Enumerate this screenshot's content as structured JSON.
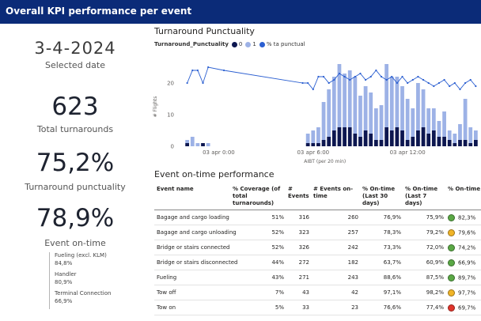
{
  "header": {
    "title": "Overall KPI performance per event"
  },
  "kpis": {
    "date": {
      "value": "3-4-2024",
      "label": "Selected date"
    },
    "turnarounds": {
      "value": "623",
      "label": "Total turnarounds"
    },
    "punctuality": {
      "value": "75,2%",
      "label": "Turnaround punctuality"
    },
    "event_ontime": {
      "value": "78,9%",
      "label": "Event on-time"
    }
  },
  "sub_kpis": [
    {
      "label": "Fueling (excl. KLM)",
      "value": "84,8%"
    },
    {
      "label": "Handler",
      "value": "80,9%"
    },
    {
      "label": "Terminal Connection",
      "value": "66,9%"
    }
  ],
  "turnaround_chart": {
    "title": "Turnaround Punctuality",
    "legend_title": "Turnaround_Punctuality",
    "legend": [
      {
        "label": "0",
        "color": "#0d1750"
      },
      {
        "label": "1",
        "color": "#9db2e6"
      },
      {
        "label": "% ta punctual",
        "color": "#2b5fd1"
      }
    ]
  },
  "chart_data": {
    "type": "bar",
    "title": "Turnaround Punctuality",
    "xlabel": "AIBT (per 20 min)",
    "ylabel": "# Flights",
    "ylim": [
      0,
      25
    ],
    "yticks": [
      0,
      10,
      20
    ],
    "xtick_labels": [
      "03 apr 0:00",
      "03 apr 6:00",
      "03 apr 12:00"
    ],
    "x_range": [
      -1,
      56
    ],
    "x_ticks_at": [
      6,
      24,
      42
    ],
    "series": [
      {
        "name": "0",
        "color": "#0d1750",
        "stacking": "bottom",
        "values": [
          1,
          0,
          0,
          1,
          0,
          0,
          0,
          0,
          0,
          0,
          0,
          0,
          0,
          0,
          0,
          0,
          0,
          0,
          0,
          0,
          0,
          0,
          0,
          1,
          1,
          1,
          2,
          3,
          5,
          6,
          6,
          6,
          4,
          3,
          5,
          4,
          2,
          2,
          6,
          5,
          6,
          5,
          2,
          3,
          5,
          6,
          4,
          5,
          3,
          3,
          2,
          1,
          2,
          2,
          1,
          2
        ]
      },
      {
        "name": "1",
        "color": "#9db2e6",
        "stacking": "top",
        "values": [
          1,
          3,
          1,
          0,
          1,
          0,
          0,
          0,
          0,
          0,
          0,
          0,
          0,
          0,
          0,
          0,
          0,
          0,
          0,
          0,
          0,
          0,
          0,
          3,
          4,
          5,
          12,
          15,
          17,
          20,
          17,
          18,
          18,
          13,
          14,
          13,
          10,
          11,
          20,
          17,
          16,
          14,
          13,
          9,
          15,
          12,
          8,
          7,
          5,
          8,
          3,
          3,
          5,
          13,
          5,
          3
        ]
      },
      {
        "name": "% ta punctual",
        "color": "#2b5fd1",
        "type": "line",
        "values": [
          20,
          24,
          24,
          20,
          25,
          null,
          null,
          24,
          null,
          null,
          null,
          null,
          null,
          null,
          null,
          null,
          null,
          null,
          null,
          null,
          null,
          null,
          20,
          20,
          18,
          22,
          22,
          20,
          21,
          23,
          22,
          21,
          22,
          23,
          21,
          22,
          24,
          22,
          21,
          22,
          20,
          22,
          20,
          21,
          22,
          21,
          20,
          19,
          20,
          21,
          19,
          20,
          18,
          20,
          21,
          19
        ]
      }
    ]
  },
  "events_table": {
    "title": "Event on-time performance",
    "columns": [
      "Event name",
      "% Coverage (of total turnarounds)",
      "# Events",
      "# Events on-time",
      "% On-time (Last 30 days)",
      "% On-time (Last 7 days)",
      "% On-time"
    ],
    "rows": [
      {
        "name": "Bagage and cargo loading",
        "coverage": "51%",
        "events": "316",
        "ontime_events": "260",
        "last30": "76,9%",
        "last7": "75,9%",
        "status_color": "#5aa845",
        "ontime": "82,3%"
      },
      {
        "name": "Bagage and cargo unloading",
        "coverage": "52%",
        "events": "323",
        "ontime_events": "257",
        "last30": "78,3%",
        "last7": "79,2%",
        "status_color": "#f0b428",
        "ontime": "79,6%"
      },
      {
        "name": "Bridge or stairs connected",
        "coverage": "52%",
        "events": "326",
        "ontime_events": "242",
        "last30": "73,3%",
        "last7": "72,0%",
        "status_color": "#5aa845",
        "ontime": "74,2%"
      },
      {
        "name": "Bridge or stairs disconnected",
        "coverage": "44%",
        "events": "272",
        "ontime_events": "182",
        "last30": "63,7%",
        "last7": "60,9%",
        "status_color": "#5aa845",
        "ontime": "66,9%"
      },
      {
        "name": "Fueling",
        "coverage": "43%",
        "events": "271",
        "ontime_events": "243",
        "last30": "88,6%",
        "last7": "87,5%",
        "status_color": "#5aa845",
        "ontime": "89,7%"
      },
      {
        "name": "Tow off",
        "coverage": "7%",
        "events": "43",
        "ontime_events": "42",
        "last30": "97,1%",
        "last7": "98,2%",
        "status_color": "#f0b428",
        "ontime": "97,7%"
      },
      {
        "name": "Tow on",
        "coverage": "5%",
        "events": "33",
        "ontime_events": "23",
        "last30": "76,6%",
        "last7": "77,4%",
        "status_color": "#e0352b",
        "ontime": "69,7%"
      }
    ]
  }
}
